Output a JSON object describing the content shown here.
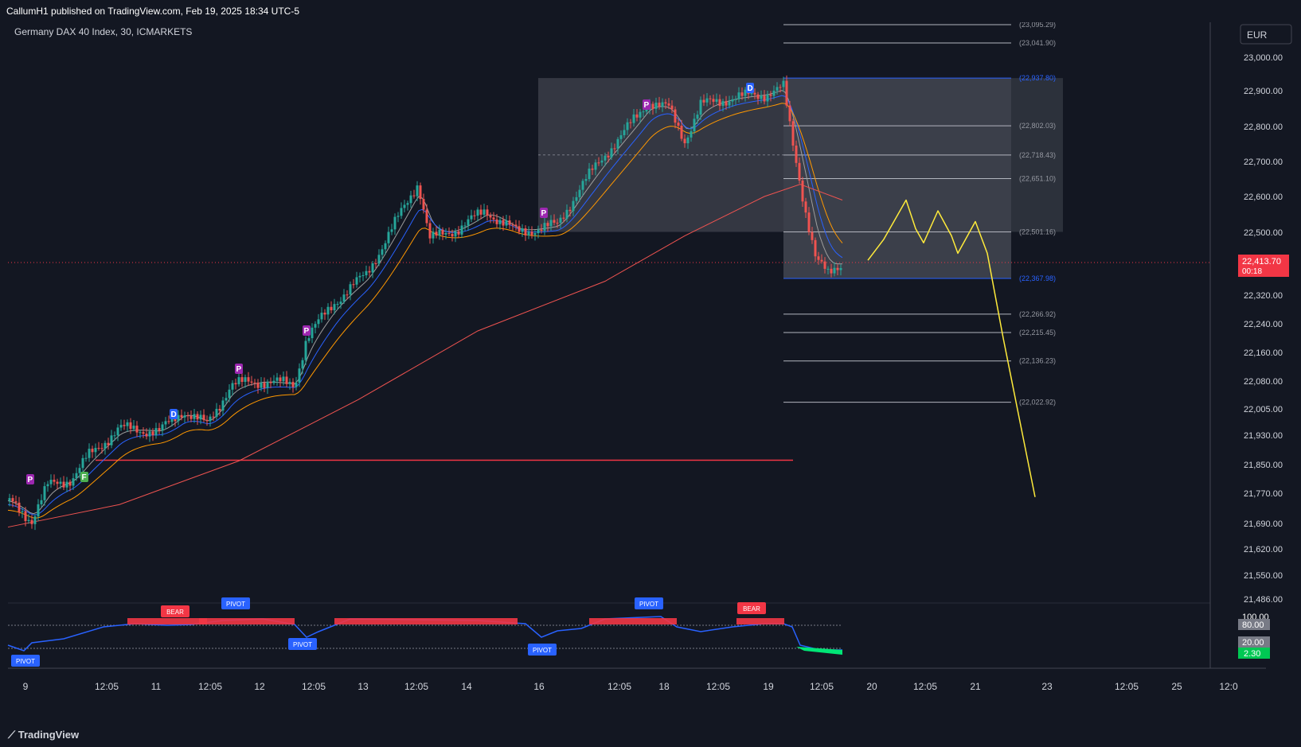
{
  "header": {
    "publisher_line": "CallumH1 published on TradingView.com, Feb 19, 2025 18:34 UTC-5"
  },
  "footer": {
    "brand": "TradingView"
  },
  "chart_data": {
    "type": "candlestick",
    "symbol": "Germany DAX 40 Index, 30, ICMARKETS",
    "currency": "EUR",
    "last_price": {
      "label": "22,413.70",
      "countdown": "00:18",
      "value": 22413.7
    },
    "price_axis": {
      "ticks": [
        "23,000.00",
        "22,900.00",
        "22,800.00",
        "22,700.00",
        "22,600.00",
        "22,500.00",
        "22,320.00",
        "22,240.00",
        "22,160.00",
        "22,080.00",
        "22,005.00",
        "21,930.00",
        "21,850.00",
        "21,770.00",
        "21,690.00",
        "21,620.00",
        "21,550.00",
        "21,486.00"
      ]
    },
    "time_axis": {
      "ticks": [
        "9",
        "12:05",
        "11",
        "12:05",
        "12",
        "12:05",
        "13",
        "12:05",
        "14",
        "16",
        "12:05",
        "18",
        "12:05",
        "19",
        "12:05",
        "20",
        "12:05",
        "21",
        "23",
        "12:05",
        "25",
        "12:0"
      ]
    },
    "levels": [
      {
        "label": "(23,095.29)",
        "value": 23095.29,
        "highlight": false
      },
      {
        "label": "(23,041.90)",
        "value": 23041.9,
        "highlight": false
      },
      {
        "label": "(22,937.80)",
        "value": 22937.8,
        "highlight": true
      },
      {
        "label": "(22,802.03)",
        "value": 22802.03,
        "highlight": false
      },
      {
        "label": "(22,718.43)",
        "value": 22718.43,
        "highlight": false
      },
      {
        "label": "(22,651.10)",
        "value": 22651.1,
        "highlight": false
      },
      {
        "label": "(22,501.16)",
        "value": 22501.16,
        "highlight": false
      },
      {
        "label": "(22,367.98)",
        "value": 22367.98,
        "highlight": true
      },
      {
        "label": "(22,266.92)",
        "value": 22266.92,
        "highlight": false
      },
      {
        "label": "(22,215.45)",
        "value": 22215.45,
        "highlight": false
      },
      {
        "label": "(22,136.23)",
        "value": 22136.23,
        "highlight": false
      },
      {
        "label": "(22,022.92)",
        "value": 22022.92,
        "highlight": false
      }
    ],
    "markers": [
      "P",
      "F",
      "D",
      "P",
      "P",
      "P",
      "P",
      "D"
    ],
    "oscillator": {
      "axis_labels": [
        "100.00",
        "80.00",
        "20.00"
      ],
      "current_value": "2.30",
      "tags": [
        "PIVOT",
        "BEAR",
        "PIVOT",
        "PIVOT",
        "PIVOT",
        "BEAR"
      ]
    },
    "colors": {
      "background": "#131722",
      "up": "#26a69a",
      "down": "#ef5350",
      "projection": "#ffeb3b",
      "ema_fast": "#9e9e9e",
      "ema_mid": "#2962ff",
      "ema_slow": "#ff9800",
      "ema_long": "#ef5350",
      "pivot_tag": "#2962ff",
      "bear_tag": "#f23645"
    }
  }
}
